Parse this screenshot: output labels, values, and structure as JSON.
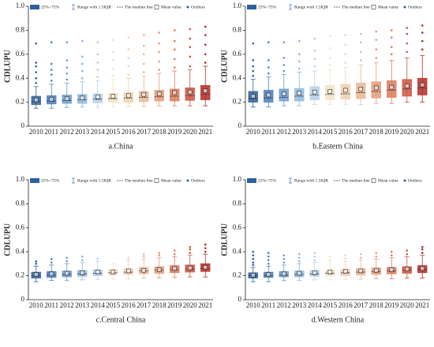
{
  "chart_data": [
    {
      "type": "box",
      "title": "a.China",
      "ylabel": "CDLUPU",
      "legend": [
        "25%~75%",
        "Range  with 1.5IQR",
        "The median line",
        "Mean value",
        "Outliers"
      ],
      "categories": [
        "2010",
        "2011",
        "2012",
        "2013",
        "2014",
        "2015",
        "2016",
        "2017",
        "2018",
        "2019",
        "2020",
        "2021"
      ],
      "colors": [
        "#2e5f9e",
        "#4a7fbd",
        "#6a9ccf",
        "#8db8de",
        "#b4d0ea",
        "#f3e3c3",
        "#f2d1b0",
        "#ecb794",
        "#e79a78",
        "#dc7a5b",
        "#cc5340",
        "#b42b25"
      ],
      "ylim": [
        0,
        1
      ],
      "yticks": [
        0,
        0.2,
        0.4,
        0.6,
        0.8,
        {
          "value": 1,
          "label": "1.0"
        }
      ],
      "boxes": [
        {
          "low": 0.15,
          "q1": 0.18,
          "median": 0.205,
          "q3": 0.25,
          "high": 0.33,
          "mean": 0.22,
          "outliers": [
            0.36,
            0.4,
            0.45,
            0.5,
            0.53,
            0.69
          ]
        },
        {
          "low": 0.15,
          "q1": 0.185,
          "median": 0.21,
          "q3": 0.255,
          "high": 0.35,
          "mean": 0.225,
          "outliers": [
            0.38,
            0.43,
            0.47,
            0.52,
            0.7
          ]
        },
        {
          "low": 0.155,
          "q1": 0.19,
          "median": 0.215,
          "q3": 0.26,
          "high": 0.36,
          "mean": 0.23,
          "outliers": [
            0.39,
            0.44,
            0.49,
            0.55,
            0.7
          ]
        },
        {
          "low": 0.16,
          "q1": 0.19,
          "median": 0.22,
          "q3": 0.265,
          "high": 0.37,
          "mean": 0.235,
          "outliers": [
            0.4,
            0.46,
            0.52,
            0.58,
            0.71
          ]
        },
        {
          "low": 0.16,
          "q1": 0.195,
          "median": 0.225,
          "q3": 0.27,
          "high": 0.38,
          "mean": 0.245,
          "outliers": [
            0.41,
            0.47,
            0.53,
            0.6,
            0.7
          ]
        },
        {
          "low": 0.16,
          "q1": 0.2,
          "median": 0.23,
          "q3": 0.275,
          "high": 0.39,
          "mean": 0.25,
          "outliers": [
            0.42,
            0.48,
            0.55,
            0.62,
            0.72
          ]
        },
        {
          "low": 0.165,
          "q1": 0.2,
          "median": 0.235,
          "q3": 0.28,
          "high": 0.4,
          "mean": 0.255,
          "outliers": [
            0.43,
            0.5,
            0.57,
            0.64,
            0.74
          ]
        },
        {
          "low": 0.165,
          "q1": 0.205,
          "median": 0.24,
          "q3": 0.29,
          "high": 0.42,
          "mean": 0.265,
          "outliers": [
            0.45,
            0.52,
            0.6,
            0.67,
            0.76
          ]
        },
        {
          "low": 0.17,
          "q1": 0.21,
          "median": 0.245,
          "q3": 0.3,
          "high": 0.44,
          "mean": 0.27,
          "outliers": [
            0.47,
            0.54,
            0.62,
            0.69,
            0.78
          ]
        },
        {
          "low": 0.17,
          "q1": 0.21,
          "median": 0.25,
          "q3": 0.31,
          "high": 0.46,
          "mean": 0.28,
          "outliers": [
            0.49,
            0.56,
            0.64,
            0.71,
            0.8
          ]
        },
        {
          "low": 0.17,
          "q1": 0.215,
          "median": 0.255,
          "q3": 0.32,
          "high": 0.47,
          "mean": 0.285,
          "outliers": [
            0.5,
            0.58,
            0.66,
            0.73,
            0.81
          ]
        },
        {
          "low": 0.17,
          "q1": 0.22,
          "median": 0.265,
          "q3": 0.34,
          "high": 0.5,
          "mean": 0.295,
          "outliers": [
            0.53,
            0.6,
            0.68,
            0.76,
            0.83
          ]
        }
      ]
    },
    {
      "type": "box",
      "title": "b.Eastern China",
      "ylabel": "CDLUPU",
      "legend": [
        "25%~75%",
        "Range  with 1.5IQR",
        "The median line",
        "Mean value",
        "Outliers"
      ],
      "categories": [
        "2010",
        "2011",
        "2012",
        "2013",
        "2014",
        "2015",
        "2016",
        "2017",
        "2018",
        "2019",
        "2020",
        "2021"
      ],
      "colors": [
        "#2e5f9e",
        "#4a7fbd",
        "#6a9ccf",
        "#8db8de",
        "#b4d0ea",
        "#f3e3c3",
        "#f2d1b0",
        "#ecb794",
        "#e79a78",
        "#dc7a5b",
        "#cc5340",
        "#b42b25"
      ],
      "ylim": [
        0,
        1
      ],
      "yticks": [
        0,
        0.2,
        0.4,
        0.6,
        0.8,
        {
          "value": 1,
          "label": "1.0"
        }
      ],
      "boxes": [
        {
          "low": 0.16,
          "q1": 0.2,
          "median": 0.23,
          "q3": 0.29,
          "high": 0.39,
          "mean": 0.25,
          "outliers": [
            0.42,
            0.46,
            0.5,
            0.55,
            0.69
          ]
        },
        {
          "low": 0.16,
          "q1": 0.2,
          "median": 0.235,
          "q3": 0.3,
          "high": 0.41,
          "mean": 0.26,
          "outliers": [
            0.44,
            0.49,
            0.55,
            0.7
          ]
        },
        {
          "low": 0.17,
          "q1": 0.21,
          "median": 0.24,
          "q3": 0.31,
          "high": 0.43,
          "mean": 0.27,
          "outliers": [
            0.46,
            0.51,
            0.57,
            0.7
          ]
        },
        {
          "low": 0.17,
          "q1": 0.21,
          "median": 0.25,
          "q3": 0.315,
          "high": 0.45,
          "mean": 0.275,
          "outliers": [
            0.48,
            0.54,
            0.6,
            0.71
          ]
        },
        {
          "low": 0.18,
          "q1": 0.22,
          "median": 0.26,
          "q3": 0.33,
          "high": 0.46,
          "mean": 0.285,
          "outliers": [
            0.5,
            0.56,
            0.63,
            0.73
          ]
        },
        {
          "low": 0.18,
          "q1": 0.22,
          "median": 0.265,
          "q3": 0.34,
          "high": 0.47,
          "mean": 0.29,
          "outliers": [
            0.51,
            0.57,
            0.65,
            0.75
          ]
        },
        {
          "low": 0.18,
          "q1": 0.225,
          "median": 0.27,
          "q3": 0.35,
          "high": 0.49,
          "mean": 0.3,
          "outliers": [
            0.53,
            0.6,
            0.68,
            0.76
          ]
        },
        {
          "low": 0.18,
          "q1": 0.23,
          "median": 0.28,
          "q3": 0.36,
          "high": 0.51,
          "mean": 0.31,
          "outliers": [
            0.55,
            0.62,
            0.7,
            0.77
          ]
        },
        {
          "low": 0.19,
          "q1": 0.235,
          "median": 0.29,
          "q3": 0.37,
          "high": 0.53,
          "mean": 0.32,
          "outliers": [
            0.57,
            0.64,
            0.72,
            0.79
          ]
        },
        {
          "low": 0.19,
          "q1": 0.24,
          "median": 0.3,
          "q3": 0.38,
          "high": 0.55,
          "mean": 0.325,
          "outliers": [
            0.6,
            0.66,
            0.74,
            0.8
          ]
        },
        {
          "low": 0.2,
          "q1": 0.25,
          "median": 0.31,
          "q3": 0.39,
          "high": 0.57,
          "mean": 0.335,
          "outliers": [
            0.62,
            0.69,
            0.77,
            0.82
          ]
        },
        {
          "low": 0.2,
          "q1": 0.26,
          "median": 0.32,
          "q3": 0.4,
          "high": 0.59,
          "mean": 0.345,
          "outliers": [
            0.64,
            0.71,
            0.78,
            0.84
          ]
        }
      ]
    },
    {
      "type": "box",
      "title": "c.Central China",
      "ylabel": "CDLUPU",
      "legend": [
        "25%~75%",
        "Range  with 1.5IQR",
        "The median line",
        "Mean value",
        "Outliers"
      ],
      "categories": [
        "2010",
        "2011",
        "2012",
        "2013",
        "2014",
        "2015",
        "2016",
        "2017",
        "2018",
        "2019",
        "2020",
        "2021"
      ],
      "colors": [
        "#2e5f9e",
        "#4a7fbd",
        "#6a9ccf",
        "#8db8de",
        "#b4d0ea",
        "#f3e3c3",
        "#f2d1b0",
        "#ecb794",
        "#e79a78",
        "#dc7a5b",
        "#cc5340",
        "#b42b25"
      ],
      "ylim": [
        0,
        1
      ],
      "yticks": [
        0,
        0.2,
        0.4,
        0.6,
        0.8,
        {
          "value": 1,
          "label": "1.0"
        }
      ],
      "boxes": [
        {
          "low": 0.15,
          "q1": 0.18,
          "median": 0.2,
          "q3": 0.23,
          "high": 0.28,
          "mean": 0.21,
          "outliers": [
            0.3,
            0.32
          ]
        },
        {
          "low": 0.16,
          "q1": 0.185,
          "median": 0.205,
          "q3": 0.235,
          "high": 0.29,
          "mean": 0.215,
          "outliers": [
            0.31,
            0.34
          ]
        },
        {
          "low": 0.16,
          "q1": 0.19,
          "median": 0.21,
          "q3": 0.24,
          "high": 0.3,
          "mean": 0.22,
          "outliers": [
            0.32,
            0.35
          ]
        },
        {
          "low": 0.165,
          "q1": 0.195,
          "median": 0.215,
          "q3": 0.245,
          "high": 0.31,
          "mean": 0.225,
          "outliers": [
            0.33,
            0.36
          ]
        },
        {
          "low": 0.17,
          "q1": 0.2,
          "median": 0.22,
          "q3": 0.25,
          "high": 0.32,
          "mean": 0.23,
          "outliers": [
            0.34
          ]
        },
        {
          "low": 0.17,
          "q1": 0.205,
          "median": 0.225,
          "q3": 0.255,
          "high": 0.3,
          "mean": 0.23,
          "outliers": []
        },
        {
          "low": 0.175,
          "q1": 0.21,
          "median": 0.23,
          "q3": 0.26,
          "high": 0.33,
          "mean": 0.24,
          "outliers": [
            0.35
          ]
        },
        {
          "low": 0.18,
          "q1": 0.215,
          "median": 0.24,
          "q3": 0.27,
          "high": 0.34,
          "mean": 0.245,
          "outliers": [
            0.36,
            0.38
          ]
        },
        {
          "low": 0.18,
          "q1": 0.22,
          "median": 0.245,
          "q3": 0.275,
          "high": 0.35,
          "mean": 0.25,
          "outliers": [
            0.37,
            0.39
          ]
        },
        {
          "low": 0.185,
          "q1": 0.225,
          "median": 0.25,
          "q3": 0.285,
          "high": 0.36,
          "mean": 0.26,
          "outliers": [
            0.38,
            0.41
          ]
        },
        {
          "low": 0.19,
          "q1": 0.23,
          "median": 0.255,
          "q3": 0.29,
          "high": 0.37,
          "mean": 0.265,
          "outliers": [
            0.39,
            0.42,
            0.44
          ]
        },
        {
          "low": 0.19,
          "q1": 0.235,
          "median": 0.26,
          "q3": 0.3,
          "high": 0.38,
          "mean": 0.27,
          "outliers": [
            0.4,
            0.43,
            0.46
          ]
        }
      ]
    },
    {
      "type": "box",
      "title": "d.Western China",
      "ylabel": "CDLUPU",
      "legend": [
        "25%~75%",
        "Range  with 1.5IQR",
        "The median line",
        "Mean value",
        "Outliers"
      ],
      "categories": [
        "2010",
        "2011",
        "2012",
        "2013",
        "2014",
        "2015",
        "2016",
        "2017",
        "2018",
        "2019",
        "2020",
        "2021"
      ],
      "colors": [
        "#2e5f9e",
        "#4a7fbd",
        "#6a9ccf",
        "#8db8de",
        "#b4d0ea",
        "#f3e3c3",
        "#f2d1b0",
        "#ecb794",
        "#e79a78",
        "#dc7a5b",
        "#cc5340",
        "#b42b25"
      ],
      "ylim": [
        0,
        1
      ],
      "yticks": [
        0,
        0.2,
        0.4,
        0.6,
        0.8,
        {
          "value": 1,
          "label": "1.0"
        }
      ],
      "boxes": [
        {
          "low": 0.15,
          "q1": 0.18,
          "median": 0.2,
          "q3": 0.225,
          "high": 0.27,
          "mean": 0.205,
          "outliers": [
            0.29,
            0.31,
            0.34,
            0.37,
            0.4
          ]
        },
        {
          "low": 0.15,
          "q1": 0.185,
          "median": 0.2,
          "q3": 0.23,
          "high": 0.28,
          "mean": 0.21,
          "outliers": [
            0.3,
            0.33,
            0.36,
            0.39
          ]
        },
        {
          "low": 0.16,
          "q1": 0.19,
          "median": 0.205,
          "q3": 0.235,
          "high": 0.29,
          "mean": 0.215,
          "outliers": [
            0.31,
            0.34,
            0.37
          ]
        },
        {
          "low": 0.16,
          "q1": 0.19,
          "median": 0.21,
          "q3": 0.24,
          "high": 0.3,
          "mean": 0.22,
          "outliers": [
            0.32,
            0.35,
            0.38
          ]
        },
        {
          "low": 0.165,
          "q1": 0.195,
          "median": 0.215,
          "q3": 0.245,
          "high": 0.31,
          "mean": 0.225,
          "outliers": [
            0.33,
            0.36,
            0.39
          ]
        },
        {
          "low": 0.165,
          "q1": 0.2,
          "median": 0.22,
          "q3": 0.25,
          "high": 0.31,
          "mean": 0.23,
          "outliers": [
            0.33,
            0.36
          ]
        },
        {
          "low": 0.17,
          "q1": 0.2,
          "median": 0.225,
          "q3": 0.255,
          "high": 0.32,
          "mean": 0.235,
          "outliers": [
            0.34,
            0.37
          ]
        },
        {
          "low": 0.17,
          "q1": 0.205,
          "median": 0.23,
          "q3": 0.26,
          "high": 0.33,
          "mean": 0.24,
          "outliers": [
            0.35,
            0.38
          ]
        },
        {
          "low": 0.175,
          "q1": 0.21,
          "median": 0.235,
          "q3": 0.265,
          "high": 0.34,
          "mean": 0.245,
          "outliers": [
            0.36,
            0.39
          ]
        },
        {
          "low": 0.175,
          "q1": 0.215,
          "median": 0.24,
          "q3": 0.27,
          "high": 0.35,
          "mean": 0.25,
          "outliers": [
            0.37,
            0.4
          ]
        },
        {
          "low": 0.18,
          "q1": 0.22,
          "median": 0.245,
          "q3": 0.275,
          "high": 0.36,
          "mean": 0.255,
          "outliers": [
            0.38,
            0.41
          ]
        },
        {
          "low": 0.18,
          "q1": 0.225,
          "median": 0.25,
          "q3": 0.285,
          "high": 0.37,
          "mean": 0.26,
          "outliers": [
            0.39,
            0.42,
            0.44
          ]
        }
      ]
    }
  ]
}
